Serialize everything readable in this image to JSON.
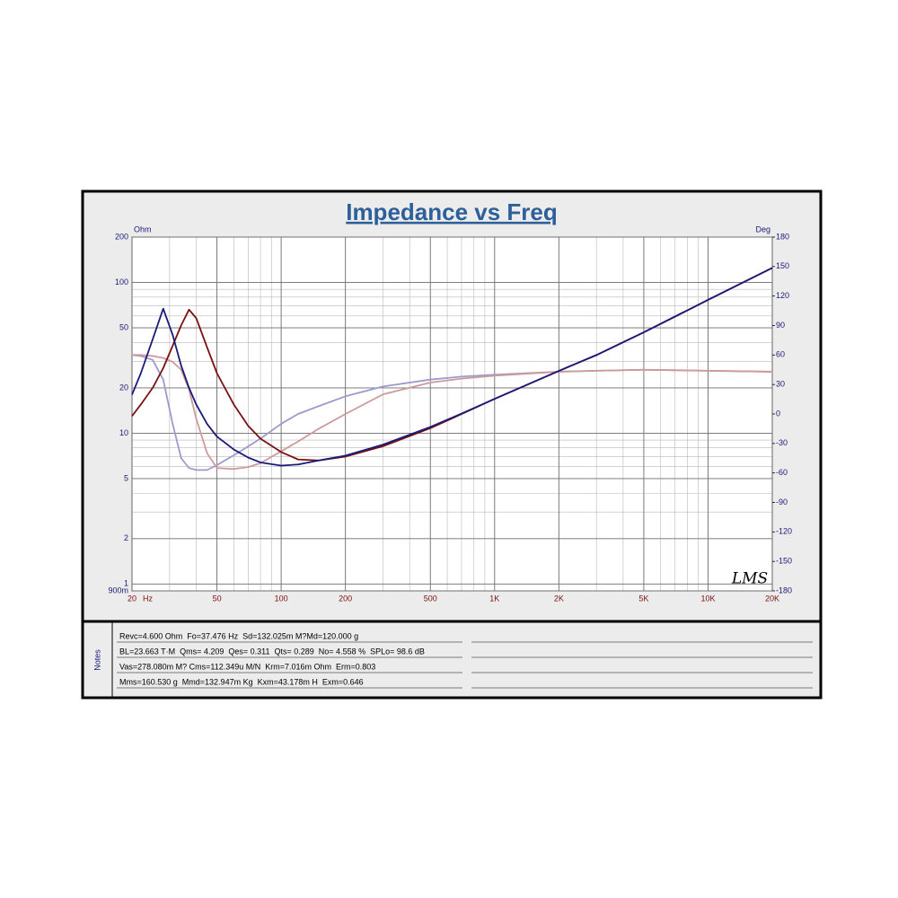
{
  "chart_data": {
    "type": "line",
    "title": "Impedance vs Freq",
    "y_label": "Ohm",
    "y2_label": "Deg",
    "x_label": "Hz",
    "log_x": true,
    "log_y": true,
    "grid": true,
    "x": [
      20,
      22,
      25,
      28,
      31,
      34,
      37,
      40,
      45,
      50,
      60,
      70,
      80,
      100,
      120,
      150,
      200,
      300,
      500,
      700,
      1000,
      2000,
      3000,
      5000,
      10000,
      20000
    ],
    "xlim": [
      20,
      20000
    ],
    "xticks": [
      20,
      50,
      100,
      200,
      500,
      {
        "value": 1000,
        "label": "1K"
      },
      {
        "value": 2000,
        "label": "2K"
      },
      {
        "value": 5000,
        "label": "5K"
      },
      {
        "value": 10000,
        "label": "10K"
      },
      {
        "value": 20000,
        "label": "20K"
      }
    ],
    "ylim": [
      0.9,
      200
    ],
    "yticks": [
      {
        "value": 0.9,
        "label": "900m"
      },
      1,
      2,
      5,
      10,
      20,
      50,
      100,
      200
    ],
    "y2lim": [
      -180,
      180
    ],
    "y2ticks": [
      -180,
      -150,
      -120,
      -90,
      -60,
      -30,
      0,
      30,
      60,
      90,
      120,
      150,
      180
    ],
    "series": [
      {
        "color": "#9b9bcc",
        "axis": "y2",
        "values": [
          60,
          59,
          55,
          35,
          -10,
          -45,
          -55,
          -57,
          -57,
          -52,
          -42,
          -33,
          -25,
          -10,
          0,
          8,
          18,
          28,
          35,
          38,
          40,
          43,
          44,
          45,
          44,
          43
        ]
      },
      {
        "color": "#cc9a9a",
        "axis": "y2",
        "values": [
          60,
          60,
          59,
          57,
          53,
          45,
          25,
          -5,
          -40,
          -55,
          -56,
          -54,
          -50,
          -38,
          -28,
          -15,
          0,
          20,
          32,
          36,
          39,
          43,
          44,
          45,
          44,
          43
        ]
      },
      {
        "color": "#7a1010",
        "values": [
          13,
          15.5,
          20,
          27,
          38,
          52,
          66,
          58,
          37,
          25,
          15.5,
          11.2,
          9.2,
          7.5,
          6.7,
          6.6,
          7.0,
          8.2,
          10.8,
          13.4,
          16.9,
          25.9,
          33,
          46.7,
          76.6,
          125
        ]
      },
      {
        "color": "#1a1a7a",
        "values": [
          18,
          25,
          42,
          67,
          45,
          28,
          20,
          15.5,
          11.5,
          9.5,
          7.8,
          6.9,
          6.4,
          6.1,
          6.2,
          6.6,
          7.1,
          8.4,
          11,
          13.5,
          16.9,
          25.9,
          33,
          46.7,
          76.6,
          125
        ]
      }
    ],
    "logo": "LMS"
  },
  "notes": {
    "label": "Notes",
    "lines": [
      "Revc=4.600 Ohm  Fo=37.476 Hz  Sd=132.025m M?Md=120.000 g",
      "BL=23.663 T·M  Qms= 4.209  Qes= 0.311  Qts= 0.289  No= 4.558 %  SPLo= 98.6 dB",
      "Vas=278.080m M? Cms=112.349u M/N  Krm=7.016m Ohm  Erm=0.803",
      "Mms=160.530 g  Mmd=132.947m Kg  Kxm=43.178m H  Exm=0.646"
    ]
  }
}
